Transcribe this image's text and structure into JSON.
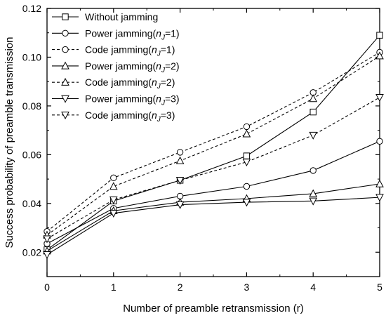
{
  "chart_data": {
    "type": "line",
    "title": "",
    "xlabel": "Number of preamble retransmission (r)",
    "ylabel": "Success probability of preamble transmission",
    "xlim": [
      0,
      5
    ],
    "ylim": [
      0.01,
      0.12
    ],
    "x": [
      0,
      1,
      2,
      3,
      4,
      5
    ],
    "xticks": [
      "0",
      "1",
      "2",
      "3",
      "4",
      "5"
    ],
    "yticks": [
      "0.02",
      "0.04",
      "0.06",
      "0.08",
      "0.10",
      "0.12"
    ],
    "grid": false,
    "legend_position": "top-left",
    "series": [
      {
        "name": "Without jamming",
        "legend": {
          "pre": "Without jamming",
          "sub": "",
          "post": ""
        },
        "marker": "square",
        "dash": "solid",
        "values": [
          0.021,
          0.041,
          0.0495,
          0.0595,
          0.0775,
          0.109
        ]
      },
      {
        "name": "Power jamming(nJ=1)",
        "legend": {
          "pre": "Power jamming(",
          "sub": "J",
          "post": "=1)"
        },
        "marker": "circle",
        "dash": "solid",
        "values": [
          0.0235,
          0.038,
          0.043,
          0.047,
          0.0535,
          0.0655
        ]
      },
      {
        "name": "Code jamming(nJ=1)",
        "legend": {
          "pre": "Code jamming(",
          "sub": "J",
          "post": "=1)"
        },
        "marker": "circle",
        "dash": "dashed",
        "values": [
          0.0285,
          0.0505,
          0.061,
          0.0715,
          0.0855,
          0.102
        ]
      },
      {
        "name": "Power jamming(nJ=2)",
        "legend": {
          "pre": "Power jamming(",
          "sub": "J",
          "post": "=2)"
        },
        "marker": "triangle-up",
        "dash": "solid",
        "values": [
          0.0205,
          0.037,
          0.0405,
          0.042,
          0.044,
          0.048
        ]
      },
      {
        "name": "Code jamming(nJ=2)",
        "legend": {
          "pre": "Code jamming(",
          "sub": "J",
          "post": "=2)"
        },
        "marker": "triangle-up",
        "dash": "dashed",
        "values": [
          0.027,
          0.047,
          0.0575,
          0.0685,
          0.083,
          0.1005
        ]
      },
      {
        "name": "Power jamming(nJ=3)",
        "legend": {
          "pre": "Power jamming(",
          "sub": "J",
          "post": "=3)"
        },
        "marker": "triangle-down",
        "dash": "solid",
        "values": [
          0.019,
          0.036,
          0.0395,
          0.0405,
          0.041,
          0.0425
        ]
      },
      {
        "name": "Code jamming(nJ=3)",
        "legend": {
          "pre": "Code jamming(",
          "sub": "J",
          "post": "=3)"
        },
        "marker": "triangle-down",
        "dash": "dashed",
        "values": [
          0.0255,
          0.0415,
          0.0495,
          0.057,
          0.068,
          0.0835
        ]
      }
    ],
    "colors": {
      "line": "#000000",
      "marker_fill": "#ffffff"
    }
  }
}
